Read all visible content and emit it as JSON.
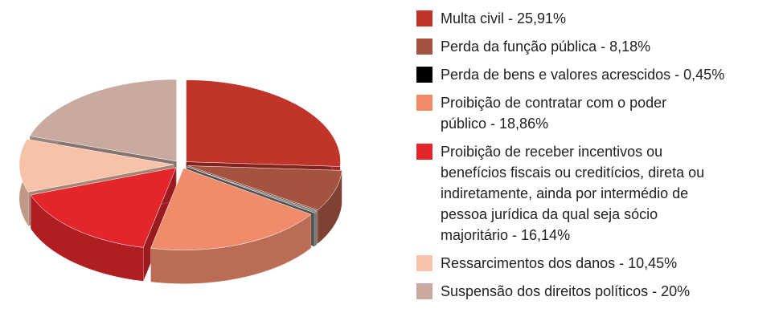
{
  "chart_data": {
    "type": "pie3d",
    "categories": [
      "Multa civil - 25,91%",
      "Perda da função pública - 8,18%",
      "Perda de bens e valores acrescidos - 0,45%",
      "Proibição de contratar com o poder público - 18,86%",
      "Proibição de receber incentivos ou benefícios fiscais ou creditícios, direta ou indiretamente, ainda por intermédio de pessoa jurídica da qual seja sócio majoritário - 16,14%",
      "Ressarcimentos dos danos - 10,45%",
      "Suspensão dos direitos políticos - 20%"
    ],
    "values": [
      25.91,
      8.18,
      0.45,
      18.86,
      16.14,
      10.45,
      20
    ],
    "colors": [
      "#c0342a",
      "#a3533f",
      "#000000",
      "#f08b6c",
      "#e3262b",
      "#f7c2aa",
      "#c9aaa0"
    ]
  }
}
